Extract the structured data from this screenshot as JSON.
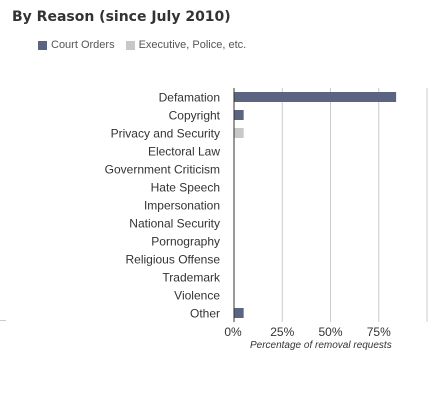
{
  "page_title": "By Reason (since July 2010)",
  "colors": {
    "court": "#5b6480",
    "executive": "#c8c8c8",
    "grid": "#cccccc",
    "axis": "#333333",
    "text": "#333333"
  },
  "chart_data": {
    "type": "bar",
    "orientation": "horizontal",
    "title": "By Reason (since July 2010)",
    "categories": [
      "Defamation",
      "Copyright",
      "Privacy and Security",
      "Electoral Law",
      "Government Criticism",
      "Hate Speech",
      "Impersonation",
      "National Security",
      "Pornography",
      "Religious Offense",
      "Trademark",
      "Violence",
      "Other"
    ],
    "series": [
      {
        "name": "Court Orders",
        "color": "#5b6480",
        "values": [
          84,
          5,
          0,
          0,
          0,
          0,
          0,
          0,
          0,
          0,
          0,
          0,
          5
        ]
      },
      {
        "name": "Executive, Police, etc.",
        "color": "#c8c8c8",
        "values": [
          0,
          0,
          5,
          0,
          0,
          0,
          0,
          0,
          0,
          0,
          0,
          0,
          0
        ]
      }
    ],
    "xlabel": "Percentage of removal requests",
    "ylabel": "",
    "xlim": [
      0,
      100
    ],
    "xticks": [
      "0%",
      "25%",
      "50%",
      "75%"
    ],
    "grid": true,
    "legend_position": "top-left"
  }
}
